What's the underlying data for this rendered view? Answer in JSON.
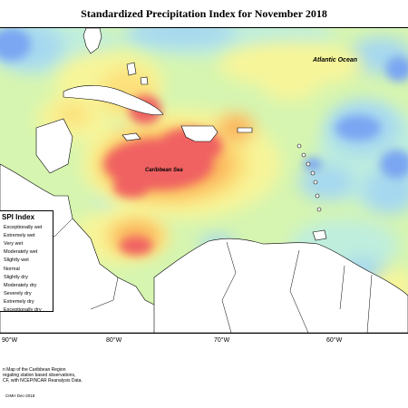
{
  "map": {
    "title": "Standardized Precipitation Index for November 2018",
    "labels": {
      "ocean": "Atlantic Ocean",
      "sea": "Caribbean Sea"
    },
    "longitude_ticks": [
      "90°W",
      "80°W",
      "70°W",
      "60°W"
    ],
    "legend": {
      "title": "SPI Index",
      "items": [
        {
          "label": "Exceptionally wet",
          "color": "#1a4fd6"
        },
        {
          "label": "Extremely wet",
          "color": "#3f7be8"
        },
        {
          "label": "Very wet",
          "color": "#7aa6f2"
        },
        {
          "label": "Moderately wet",
          "color": "#a6d8f0"
        },
        {
          "label": "Slightly wet",
          "color": "#bfeedd"
        },
        {
          "label": "Normal",
          "color": "#d6f5b0"
        },
        {
          "label": "Slightly dry",
          "color": "#f7f59a"
        },
        {
          "label": "Moderately dry",
          "color": "#fce07a"
        },
        {
          "label": "Severely dry",
          "color": "#fbb45c"
        },
        {
          "label": "Extremely dry",
          "color": "#f78a5e"
        },
        {
          "label": "Exceptionally dry",
          "color": "#f06262"
        }
      ]
    },
    "notes": [
      "n Map of the Caribbean Region",
      "regating station based observations,",
      "CF, with NCEP/NCAR Reanalysis Data."
    ],
    "credit": "CIMH Dec-2018"
  }
}
